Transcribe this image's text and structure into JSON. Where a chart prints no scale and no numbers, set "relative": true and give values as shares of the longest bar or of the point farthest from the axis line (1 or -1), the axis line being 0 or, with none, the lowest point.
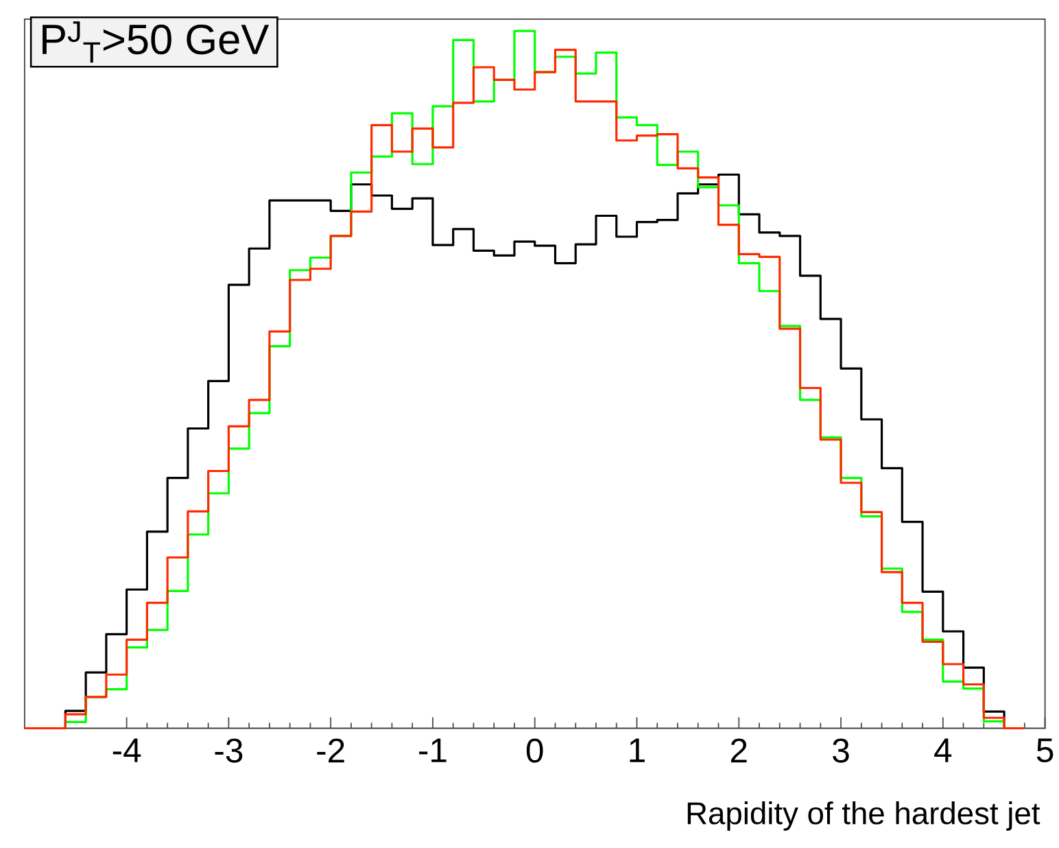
{
  "chart_data": {
    "type": "step",
    "title": "P$^{J}$$_{T}$>50 GeV",
    "xlabel": "Rapidity of the hardest jet",
    "relative": true,
    "xlim": [
      -5,
      5
    ],
    "xticks": [
      {
        "value": -4,
        "label": "-4"
      },
      {
        "value": -3,
        "label": "-3"
      },
      {
        "value": -2,
        "label": "-2"
      },
      {
        "value": -1,
        "label": "-1"
      },
      {
        "value": 0,
        "label": "0"
      },
      {
        "value": 1,
        "label": "1"
      },
      {
        "value": 2,
        "label": "2"
      },
      {
        "value": 3,
        "label": "3"
      },
      {
        "value": 4,
        "label": "4"
      },
      {
        "value": 5,
        "label": "5"
      }
    ],
    "x": [
      -5.0,
      -4.8,
      -4.6,
      -4.4,
      -4.2,
      -4.0,
      -3.8,
      -3.6,
      -3.4,
      -3.2,
      -3.0,
      -2.8,
      -2.6,
      -2.4,
      -2.2,
      -2.0,
      -1.8,
      -1.6,
      -1.4,
      -1.2,
      -1.0,
      -0.8,
      -0.6,
      -0.4,
      -0.2,
      0.0,
      0.2,
      0.4,
      0.6,
      0.8,
      1.0,
      1.2,
      1.4,
      1.6,
      1.8,
      2.0,
      2.2,
      2.4,
      2.6,
      2.8,
      3.0,
      3.2,
      3.4,
      3.6,
      3.8,
      4.0,
      4.2,
      4.4,
      4.6,
      4.8
    ],
    "series": [
      {
        "color": "#000000",
        "values": [
          0,
          0,
          0.025,
          0.08,
          0.135,
          0.199,
          0.282,
          0.359,
          0.43,
          0.498,
          0.636,
          0.688,
          0.757,
          0.757,
          0.757,
          0.742,
          0.78,
          0.764,
          0.745,
          0.76,
          0.693,
          0.716,
          0.685,
          0.678,
          0.698,
          0.692,
          0.667,
          0.694,
          0.735,
          0.705,
          0.726,
          0.729,
          0.767,
          0.78,
          0.794,
          0.737,
          0.711,
          0.706,
          0.649,
          0.587,
          0.516,
          0.443,
          0.373,
          0.296,
          0.196,
          0.139,
          0.087,
          0.024,
          0,
          0
        ]
      },
      {
        "color": "#00ff00",
        "values": [
          0,
          0,
          0.009,
          0.045,
          0.056,
          0.116,
          0.141,
          0.197,
          0.278,
          0.337,
          0.401,
          0.452,
          0.548,
          0.657,
          0.675,
          0.706,
          0.797,
          0.82,
          0.882,
          0.809,
          0.892,
          0.987,
          0.899,
          0.93,
          1,
          0.941,
          0.963,
          0.939,
          0.969,
          0.876,
          0.865,
          0.808,
          0.827,
          0.776,
          0.75,
          0.667,
          0.627,
          0.577,
          0.471,
          0.417,
          0.359,
          0.304,
          0.229,
          0.167,
          0.127,
          0.067,
          0.057,
          0.01,
          0,
          0
        ]
      },
      {
        "color": "#ff2a00",
        "values": [
          0,
          0,
          0.02,
          0.045,
          0.077,
          0.127,
          0.18,
          0.245,
          0.311,
          0.369,
          0.433,
          0.471,
          0.569,
          0.643,
          0.659,
          0.706,
          0.741,
          0.865,
          0.827,
          0.86,
          0.833,
          0.897,
          0.948,
          0.93,
          0.916,
          0.941,
          0.973,
          0.899,
          0.899,
          0.843,
          0.85,
          0.852,
          0.803,
          0.79,
          0.722,
          0.68,
          0.676,
          0.573,
          0.488,
          0.414,
          0.352,
          0.31,
          0.224,
          0.18,
          0.124,
          0.092,
          0.063,
          0.015,
          0,
          0
        ]
      }
    ]
  }
}
